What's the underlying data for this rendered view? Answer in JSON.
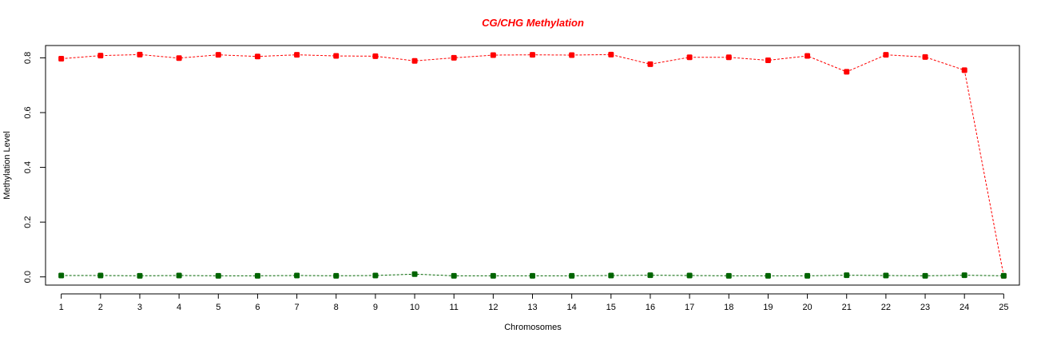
{
  "chart_data": {
    "type": "line",
    "title": "CG/CHG Methylation",
    "title_color": "#ff0000",
    "xlabel": "Chromosomes",
    "ylabel": "Methylation Level",
    "xlim": [
      0.6,
      25.4
    ],
    "ylim": [
      -0.03,
      0.845
    ],
    "x_ticks": [
      1,
      2,
      3,
      4,
      5,
      6,
      7,
      8,
      9,
      10,
      11,
      12,
      13,
      14,
      15,
      16,
      17,
      18,
      19,
      20,
      21,
      22,
      23,
      24,
      25
    ],
    "x_tick_labels": [
      "1",
      "2",
      "3",
      "4",
      "5",
      "6",
      "7",
      "8",
      "9",
      "10",
      "11",
      "12",
      "13",
      "14",
      "15",
      "16",
      "17",
      "18",
      "19",
      "20",
      "21",
      "22",
      "23",
      "24",
      "25"
    ],
    "y_ticks": [
      0.0,
      0.2,
      0.4,
      0.6,
      0.8
    ],
    "y_tick_labels": [
      "0.0",
      "0.2",
      "0.4",
      "0.6",
      "0.8"
    ],
    "grid": false,
    "series": [
      {
        "color": "#ff0000",
        "values": [
          0.797,
          0.808,
          0.812,
          0.799,
          0.811,
          0.805,
          0.811,
          0.807,
          0.806,
          0.789,
          0.8,
          0.81,
          0.811,
          0.81,
          0.812,
          0.777,
          0.802,
          0.802,
          0.791,
          0.807,
          0.749,
          0.811,
          0.803,
          0.755,
          0.004
        ]
      },
      {
        "color": "#006400",
        "values": [
          0.005,
          0.005,
          0.004,
          0.005,
          0.004,
          0.004,
          0.005,
          0.004,
          0.005,
          0.01,
          0.004,
          0.004,
          0.004,
          0.004,
          0.005,
          0.006,
          0.005,
          0.004,
          0.004,
          0.004,
          0.006,
          0.005,
          0.004,
          0.006,
          0.004
        ]
      }
    ]
  }
}
